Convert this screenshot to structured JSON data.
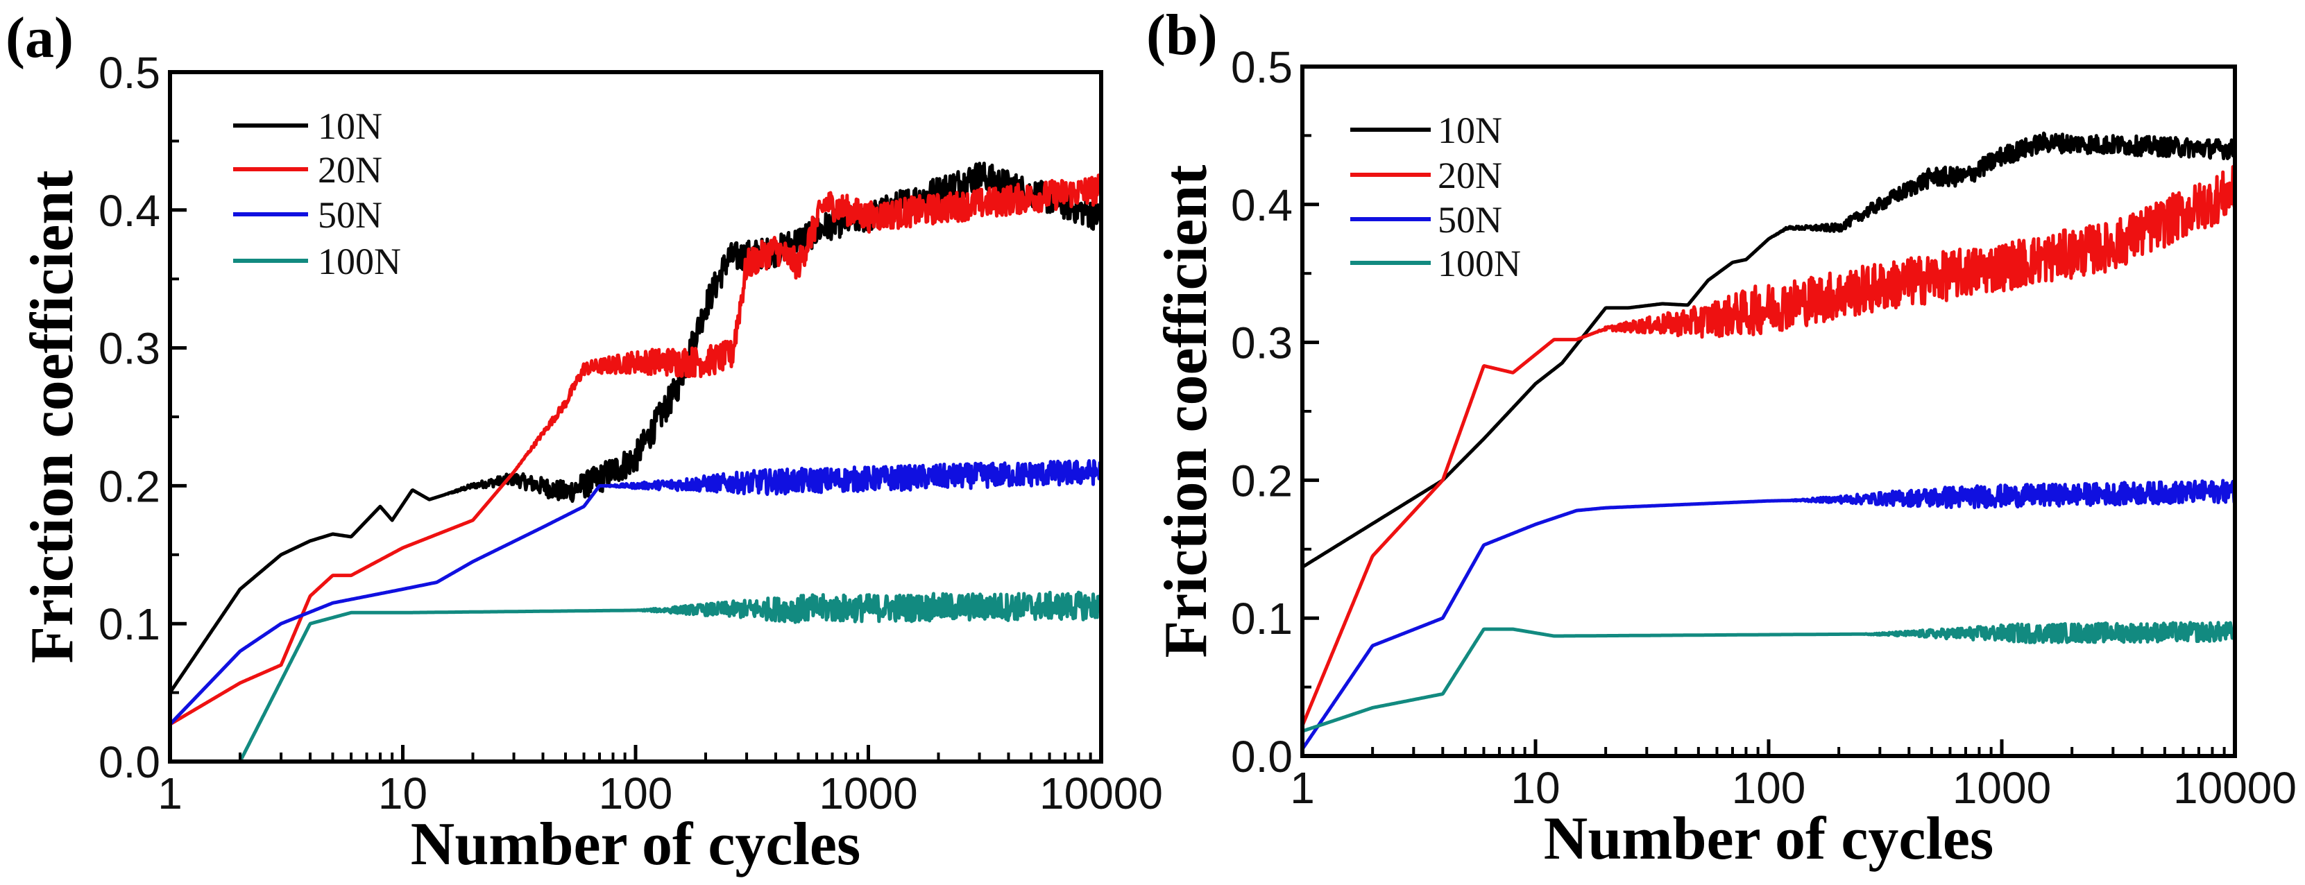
{
  "chart_data": [
    {
      "type": "line",
      "panel_label": "(a)",
      "xlabel": "Number of cycles",
      "ylabel": "Friction coefficient",
      "xscale": "log",
      "xlim": [
        1,
        10000
      ],
      "ylim": [
        0,
        0.5
      ],
      "xticks": [
        "1",
        "10",
        "100",
        "1000",
        "10000"
      ],
      "yticks": [
        "0.0",
        "0.1",
        "0.2",
        "0.3",
        "0.4",
        "0.5"
      ],
      "legend": "top-left",
      "grid": false,
      "series": [
        {
          "name": "10N",
          "color": "#000000",
          "points": [
            [
              1,
              0.05
            ],
            [
              2,
              0.125
            ],
            [
              3,
              0.15
            ],
            [
              4,
              0.16
            ],
            [
              5,
              0.165
            ],
            [
              6,
              0.163
            ],
            [
              8,
              0.185
            ],
            [
              9,
              0.175
            ],
            [
              11,
              0.197
            ],
            [
              13,
              0.19
            ],
            [
              20,
              0.2
            ],
            [
              30,
              0.205
            ],
            [
              50,
              0.195
            ],
            [
              70,
              0.205
            ],
            [
              100,
              0.22
            ],
            [
              150,
              0.27
            ],
            [
              200,
              0.33
            ],
            [
              250,
              0.365
            ],
            [
              400,
              0.37
            ],
            [
              700,
              0.39
            ],
            [
              1000,
              0.395
            ],
            [
              3000,
              0.425
            ],
            [
              10000,
              0.395
            ]
          ],
          "noise_from": 15,
          "noise_amp": 0.011
        },
        {
          "name": "20N",
          "color": "#ee1111",
          "points": [
            [
              1,
              0.027
            ],
            [
              2,
              0.057
            ],
            [
              3,
              0.07
            ],
            [
              4,
              0.12
            ],
            [
              5,
              0.135
            ],
            [
              6,
              0.135
            ],
            [
              10,
              0.155
            ],
            [
              20,
              0.175
            ],
            [
              30,
              0.21
            ],
            [
              50,
              0.26
            ],
            [
              60,
              0.285
            ],
            [
              100,
              0.29
            ],
            [
              200,
              0.29
            ],
            [
              260,
              0.295
            ],
            [
              300,
              0.36
            ],
            [
              400,
              0.372
            ],
            [
              500,
              0.36
            ],
            [
              650,
              0.405
            ],
            [
              1000,
              0.395
            ],
            [
              10000,
              0.415
            ]
          ],
          "noise_from": 30,
          "noise_amp": 0.011
        },
        {
          "name": "50N",
          "color": "#1010e0",
          "points": [
            [
              1,
              0.027
            ],
            [
              2,
              0.08
            ],
            [
              3,
              0.1
            ],
            [
              5,
              0.115
            ],
            [
              10,
              0.125
            ],
            [
              14,
              0.13
            ],
            [
              20,
              0.145
            ],
            [
              40,
              0.17
            ],
            [
              60,
              0.185
            ],
            [
              70,
              0.2
            ],
            [
              100,
              0.2
            ],
            [
              10000,
              0.21
            ]
          ],
          "noise_from": 70,
          "noise_amp": 0.009
        },
        {
          "name": "100N",
          "color": "#128a80",
          "points": [
            [
              1,
              0.0
            ],
            [
              2,
              0.0
            ],
            [
              4,
              0.1
            ],
            [
              6,
              0.108
            ],
            [
              10,
              0.108
            ],
            [
              10000,
              0.113
            ]
          ],
          "noise_from": 100,
          "noise_amp": 0.01
        }
      ]
    },
    {
      "type": "line",
      "panel_label": "(b)",
      "xlabel": "Number of cycles",
      "ylabel": "Friction coefficient",
      "xscale": "log",
      "xlim": [
        1,
        10000
      ],
      "ylim": [
        0,
        0.5
      ],
      "xticks": [
        "1",
        "10",
        "100",
        "1000",
        "10000"
      ],
      "yticks": [
        "0.0",
        "0.1",
        "0.2",
        "0.3",
        "0.4",
        "0.5"
      ],
      "legend": "top-left",
      "grid": false,
      "series": [
        {
          "name": "10N",
          "color": "#000000",
          "points": [
            [
              1,
              0.137
            ],
            [
              4,
              0.2
            ],
            [
              6,
              0.23
            ],
            [
              10,
              0.27
            ],
            [
              13,
              0.285
            ],
            [
              20,
              0.325
            ],
            [
              25,
              0.325
            ],
            [
              35,
              0.328
            ],
            [
              45,
              0.327
            ],
            [
              55,
              0.345
            ],
            [
              70,
              0.358
            ],
            [
              80,
              0.36
            ],
            [
              100,
              0.375
            ],
            [
              120,
              0.383
            ],
            [
              200,
              0.383
            ],
            [
              300,
              0.4
            ],
            [
              500,
              0.42
            ],
            [
              700,
              0.42
            ],
            [
              1000,
              0.435
            ],
            [
              1500,
              0.445
            ],
            [
              10000,
              0.44
            ]
          ],
          "noise_from": 100,
          "noise_amp": 0.007
        },
        {
          "name": "20N",
          "color": "#ee1111",
          "points": [
            [
              1,
              0.022
            ],
            [
              2,
              0.145
            ],
            [
              4,
              0.2
            ],
            [
              6,
              0.283
            ],
            [
              8,
              0.278
            ],
            [
              12,
              0.302
            ],
            [
              15,
              0.302
            ],
            [
              20,
              0.31
            ],
            [
              50,
              0.315
            ],
            [
              100,
              0.325
            ],
            [
              300,
              0.34
            ],
            [
              1000,
              0.355
            ],
            [
              3000,
              0.37
            ],
            [
              10000,
              0.41
            ]
          ],
          "noise_from": 18,
          "noise_amp": 0.018
        },
        {
          "name": "50N",
          "color": "#1010e0",
          "points": [
            [
              1,
              0.005
            ],
            [
              2,
              0.08
            ],
            [
              4,
              0.1
            ],
            [
              6,
              0.153
            ],
            [
              10,
              0.168
            ],
            [
              15,
              0.178
            ],
            [
              20,
              0.18
            ],
            [
              100,
              0.185
            ],
            [
              10000,
              0.192
            ]
          ],
          "noise_from": 120,
          "noise_amp": 0.008
        },
        {
          "name": "100N",
          "color": "#128a80",
          "points": [
            [
              1,
              0.018
            ],
            [
              2,
              0.035
            ],
            [
              4,
              0.045
            ],
            [
              6,
              0.092
            ],
            [
              8,
              0.092
            ],
            [
              12,
              0.087
            ],
            [
              100,
              0.088
            ],
            [
              10000,
              0.09
            ]
          ],
          "noise_from": 250,
          "noise_amp": 0.007
        }
      ]
    }
  ]
}
